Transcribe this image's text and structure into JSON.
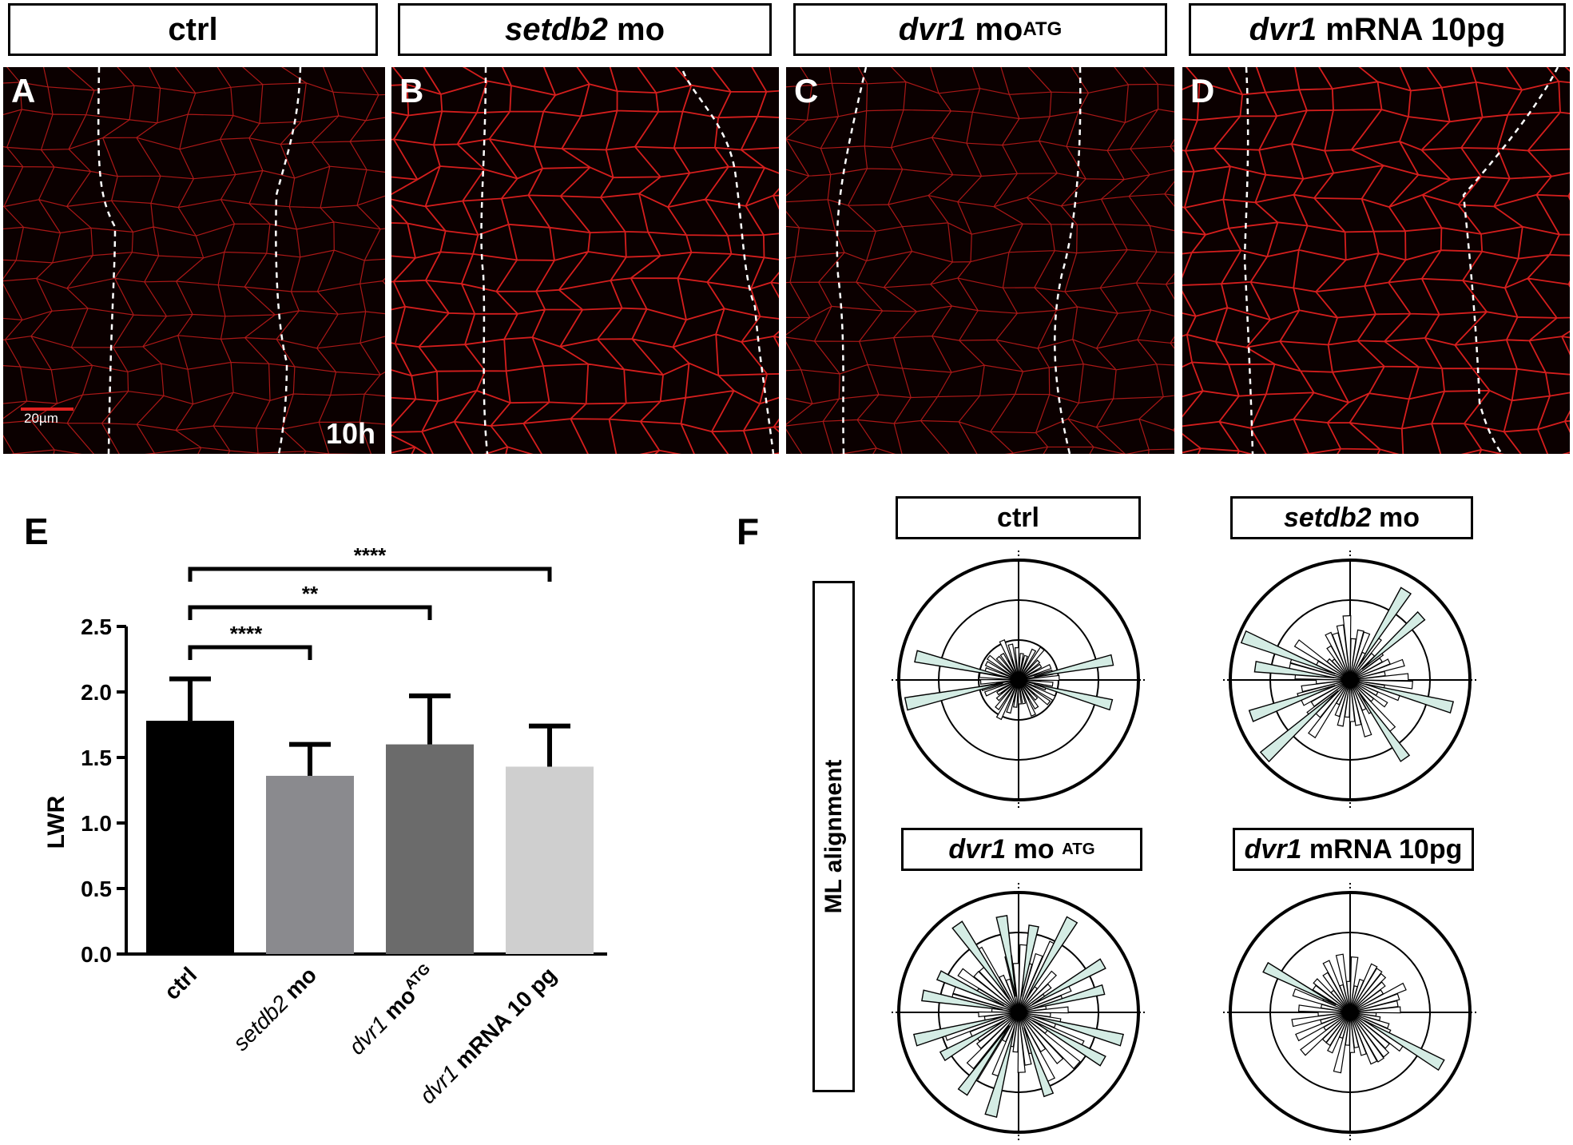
{
  "panels_top": [
    {
      "letter": "A",
      "title_html": "ctrl",
      "label": "ctrl"
    },
    {
      "letter": "B",
      "title_html": "setdb2 mo",
      "gene": "setdb2",
      "suffix": "mo"
    },
    {
      "letter": "C",
      "title_html": "dvr1 moATG",
      "gene": "dvr1",
      "suffix": "mo",
      "sup": "ATG"
    },
    {
      "letter": "D",
      "title_html": "dvr1 mRNA 10pg",
      "gene": "dvr1",
      "suffix": "mRNA 10pg"
    }
  ],
  "scale_bar_label": "20µm",
  "time_label": "10h",
  "panel_e_letter": "E",
  "panel_f_letter": "F",
  "ml_label": "ML alignment",
  "colors": {
    "membrane": "#e0201f",
    "background_micro": "#0b0000",
    "rose_fill": "#d4ece4",
    "bar_colors": [
      "#000000",
      "#8a8a8e",
      "#6b6b6b",
      "#cfcfcf"
    ]
  },
  "chart_data": [
    {
      "type": "bar",
      "ylabel": "LWR",
      "ylim": [
        0,
        2.5
      ],
      "yticks": [
        "0.0",
        "0.5",
        "1.0",
        "1.5",
        "2.0",
        "2.5"
      ],
      "categories": [
        "ctrl",
        "setdb2 mo",
        "dvr1 moATG",
        "dvr1 mRNA 10 pg"
      ],
      "category_parts": [
        {
          "italic": "",
          "bold": "ctrl",
          "sup": ""
        },
        {
          "italic": "setdb2",
          "bold": "mo",
          "sup": ""
        },
        {
          "italic": "dvr1",
          "bold": "mo",
          "sup": "ATG"
        },
        {
          "italic": "dvr1",
          "bold": "mRNA 10 pg",
          "sup": ""
        }
      ],
      "values": [
        1.78,
        1.36,
        1.6,
        1.43
      ],
      "errors": [
        0.32,
        0.24,
        0.37,
        0.31
      ],
      "significance": [
        {
          "from": "ctrl",
          "to": "setdb2 mo",
          "label": "****"
        },
        {
          "from": "ctrl",
          "to": "dvr1 moATG",
          "label": "**"
        },
        {
          "from": "ctrl",
          "to": "dvr1 mRNA 10 pg",
          "label": "****"
        }
      ]
    },
    {
      "type": "rose",
      "title": "ctrl",
      "highlight_angles_deg": [
        12,
        167,
        192,
        345
      ],
      "inner_angles_deg": [
        0,
        15,
        30,
        150,
        165,
        180,
        195,
        210,
        330,
        345
      ]
    },
    {
      "type": "rose",
      "title": "setdb2 mo",
      "highlight_angles_deg": [
        42,
        58,
        158,
        172,
        200,
        222,
        305,
        345
      ]
    },
    {
      "type": "rose",
      "title": "dvr1 mo ATG",
      "highlight_angles_deg": [
        15,
        30,
        60,
        80,
        100,
        125,
        155,
        170,
        195,
        210,
        235,
        255,
        290,
        330,
        345
      ]
    },
    {
      "type": "rose",
      "title": "dvr1 mRNA 10pg",
      "highlight_angles_deg": [
        152,
        330
      ]
    }
  ],
  "titles": {
    "rose_ctrl": "ctrl",
    "rose_setdb2_gene": "setdb2",
    "rose_setdb2_suffix": "mo",
    "rose_dvr_mo_gene": "dvr1",
    "rose_dvr_mo_suffix": "mo",
    "rose_dvr_mo_sup": "ATG",
    "rose_dvr_mrna_gene": "dvr1",
    "rose_dvr_mrna_suffix": "mRNA 10pg"
  }
}
